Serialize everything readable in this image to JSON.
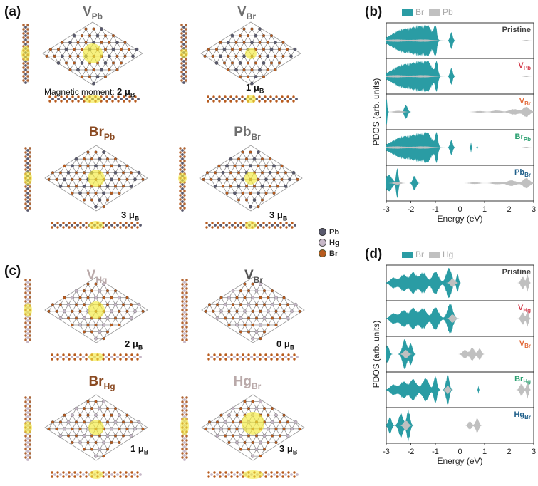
{
  "colors": {
    "br": "#2a9ca4",
    "pb": "#c0c0c0",
    "hg": "#c0c0c0",
    "spin": "#f3ea3a",
    "pb_atom": "#5a5a6e",
    "hg_atom": "#c7b8c8",
    "br_atom": "#b85b1e",
    "bond": "#8a8a8a"
  },
  "panel_a": {
    "label": "(a)",
    "defects": [
      {
        "base": "V",
        "sub": "Pb",
        "moment_value": "2",
        "moment_unit": "μ",
        "moment_sub": "B",
        "moment_prefix": "Magnetic moment: "
      },
      {
        "base": "V",
        "sub": "Br",
        "moment_value": "1",
        "moment_unit": "μ",
        "moment_sub": "B"
      },
      {
        "base": "Br",
        "sub": "Pb",
        "moment_value": "3",
        "moment_unit": "μ",
        "moment_sub": "B"
      },
      {
        "base": "Pb",
        "sub": "Br",
        "moment_value": "3",
        "moment_unit": "μ",
        "moment_sub": "B"
      }
    ],
    "atom_legend": [
      "Pb",
      "Hg",
      "Br"
    ]
  },
  "panel_c": {
    "label": "(c)",
    "defects": [
      {
        "base": "V",
        "sub": "Hg",
        "moment_value": "2",
        "moment_unit": "μ",
        "moment_sub": "B"
      },
      {
        "base": "V",
        "sub": "Br",
        "moment_value": "0",
        "moment_unit": "μ",
        "moment_sub": "B"
      },
      {
        "base": "Br",
        "sub": "Hg",
        "moment_value": "1",
        "moment_unit": "μ",
        "moment_sub": "B"
      },
      {
        "base": "Hg",
        "sub": "Br",
        "moment_value": "3",
        "moment_unit": "μ",
        "moment_sub": "B"
      }
    ]
  },
  "chart_data": [
    {
      "panel": "(b)",
      "type": "area",
      "legend": [
        "Br",
        "Pb"
      ],
      "xlabel": "Energy (eV)",
      "ylabel": "PDOS (arb. units)",
      "xlim": [
        -3,
        3
      ],
      "xticks": [
        "-3",
        "-2",
        "-1",
        "0",
        "1",
        "2",
        "3"
      ],
      "fermi_level": 0,
      "rows": [
        {
          "title": "Pristine",
          "title_base": "Pristine",
          "title_sub": "",
          "color": "#444444",
          "br_peaks": [
            [
              -2.6,
              0.35,
              0.9
            ],
            [
              -2.2,
              0.55,
              0.7
            ],
            [
              -1.7,
              0.75,
              0.5
            ],
            [
              -1.3,
              0.9,
              0.4
            ],
            [
              -1.0,
              1.0,
              0.12
            ],
            [
              -0.35,
              0.55,
              0.12
            ]
          ],
          "pb_peaks": [
            [
              -2.6,
              0.08,
              0.9
            ],
            [
              -1.5,
              0.08,
              0.8
            ],
            [
              2.7,
              0.05,
              0.2
            ]
          ]
        },
        {
          "title": "VPb",
          "title_base": "V",
          "title_sub": "Pb",
          "color": "#d23a4a",
          "br_peaks": [
            [
              -2.6,
              0.35,
              0.9
            ],
            [
              -2.2,
              0.55,
              0.7
            ],
            [
              -1.7,
              0.75,
              0.5
            ],
            [
              -1.3,
              0.9,
              0.4
            ],
            [
              -0.95,
              1.0,
              0.12
            ],
            [
              -0.35,
              0.55,
              0.12
            ]
          ],
          "pb_peaks": [
            [
              -2.6,
              0.08,
              0.9
            ],
            [
              -1.5,
              0.08,
              0.8
            ],
            [
              2.7,
              0.05,
              0.2
            ]
          ]
        },
        {
          "title": "VBr",
          "title_base": "V",
          "title_sub": "Br",
          "color": "#e26a3a",
          "br_peaks": [
            [
              -3.0,
              1.0,
              0.08
            ],
            [
              -2.2,
              0.45,
              0.15
            ]
          ],
          "pb_peaks": [
            [
              -2.5,
              0.08,
              0.4
            ],
            [
              0.8,
              0.06,
              0.4
            ],
            [
              1.5,
              0.1,
              0.4
            ],
            [
              2.2,
              0.2,
              0.4
            ],
            [
              2.7,
              0.35,
              0.3
            ]
          ]
        },
        {
          "title": "BrPb",
          "title_base": "Br",
          "title_sub": "Pb",
          "color": "#2aa070",
          "br_peaks": [
            [
              -2.6,
              0.35,
              0.9
            ],
            [
              -2.2,
              0.5,
              0.7
            ],
            [
              -1.7,
              0.7,
              0.5
            ],
            [
              -1.3,
              0.85,
              0.4
            ],
            [
              -0.95,
              1.0,
              0.12
            ],
            [
              -0.35,
              0.5,
              0.12
            ],
            [
              0.45,
              0.35,
              0.04
            ],
            [
              0.7,
              0.15,
              0.03
            ]
          ],
          "pb_peaks": [
            [
              -2.6,
              0.08,
              0.9
            ],
            [
              -1.5,
              0.08,
              0.8
            ],
            [
              2.7,
              0.05,
              0.2
            ]
          ]
        },
        {
          "title": "PbBr",
          "title_base": "Pb",
          "title_sub": "Br",
          "color": "#1f5f8a",
          "br_peaks": [
            [
              -2.9,
              0.55,
              0.3
            ],
            [
              -2.55,
              1.0,
              0.1
            ],
            [
              -1.85,
              0.5,
              0.15
            ]
          ],
          "pb_peaks": [
            [
              -2.55,
              0.1,
              0.3
            ],
            [
              0.6,
              0.06,
              0.4
            ],
            [
              1.5,
              0.08,
              0.4
            ],
            [
              2.1,
              0.2,
              0.4
            ],
            [
              2.7,
              0.35,
              0.3
            ]
          ]
        }
      ]
    },
    {
      "panel": "(d)",
      "type": "area",
      "legend": [
        "Br",
        "Hg"
      ],
      "xlabel": "Energy (eV)",
      "ylabel": "PDOS (arb. units)",
      "xlim": [
        -3,
        3
      ],
      "xticks": [
        "-3",
        "-2",
        "-1",
        "0",
        "1",
        "2",
        "3"
      ],
      "fermi_level": 0,
      "rows": [
        {
          "title": "Pristine",
          "title_base": "Pristine",
          "title_sub": "",
          "color": "#444444",
          "br_peaks": [
            [
              -2.7,
              0.35,
              0.3
            ],
            [
              -2.3,
              0.55,
              0.3
            ],
            [
              -1.9,
              0.7,
              0.3
            ],
            [
              -1.5,
              0.7,
              0.3
            ],
            [
              -1.0,
              0.75,
              0.3
            ],
            [
              -0.45,
              1.0,
              0.25
            ],
            [
              -0.1,
              0.6,
              0.1
            ]
          ],
          "pb_peaks": [
            [
              -0.3,
              0.3,
              0.2
            ],
            [
              2.55,
              0.45,
              0.15
            ],
            [
              2.75,
              0.6,
              0.1
            ]
          ]
        },
        {
          "title": "VHg",
          "title_base": "V",
          "title_sub": "Hg",
          "color": "#d23a4a",
          "br_peaks": [
            [
              -2.7,
              0.35,
              0.3
            ],
            [
              -2.3,
              0.55,
              0.3
            ],
            [
              -1.9,
              0.7,
              0.3
            ],
            [
              -1.5,
              0.7,
              0.3
            ],
            [
              -1.0,
              0.75,
              0.3
            ],
            [
              -0.4,
              1.0,
              0.25
            ]
          ],
          "pb_peaks": [
            [
              -0.3,
              0.3,
              0.2
            ],
            [
              2.55,
              0.45,
              0.15
            ],
            [
              2.75,
              0.55,
              0.1
            ]
          ]
        },
        {
          "title": "VBr",
          "title_base": "V",
          "title_sub": "Br",
          "color": "#e26a3a",
          "br_peaks": [
            [
              -2.95,
              0.6,
              0.15
            ],
            [
              -2.25,
              1.0,
              0.2
            ],
            [
              -2.0,
              0.7,
              0.15
            ]
          ],
          "pb_peaks": [
            [
              -2.2,
              0.3,
              0.2
            ],
            [
              0.2,
              0.3,
              0.2
            ],
            [
              0.5,
              0.45,
              0.2
            ],
            [
              0.8,
              0.4,
              0.15
            ]
          ]
        },
        {
          "title": "BrHg",
          "title_base": "Br",
          "title_sub": "Hg",
          "color": "#2aa070",
          "br_peaks": [
            [
              -2.7,
              0.35,
              0.3
            ],
            [
              -2.3,
              0.55,
              0.3
            ],
            [
              -1.9,
              0.7,
              0.3
            ],
            [
              -1.4,
              0.75,
              0.3
            ],
            [
              -1.0,
              0.9,
              0.15
            ],
            [
              -0.5,
              1.0,
              0.15
            ],
            [
              0.75,
              0.3,
              0.03
            ]
          ],
          "pb_peaks": [
            [
              -0.5,
              0.3,
              0.15
            ],
            [
              2.5,
              0.45,
              0.15
            ],
            [
              2.75,
              0.6,
              0.1
            ]
          ]
        },
        {
          "title": "HgBr",
          "title_base": "Hg",
          "title_sub": "Br",
          "color": "#1f5f8a",
          "br_peaks": [
            [
              -2.85,
              0.55,
              0.15
            ],
            [
              -2.4,
              0.8,
              0.2
            ],
            [
              -2.1,
              1.0,
              0.15
            ]
          ],
          "pb_peaks": [
            [
              -2.2,
              0.35,
              0.2
            ],
            [
              0.4,
              0.3,
              0.15
            ],
            [
              0.7,
              0.5,
              0.15
            ]
          ]
        }
      ]
    }
  ]
}
